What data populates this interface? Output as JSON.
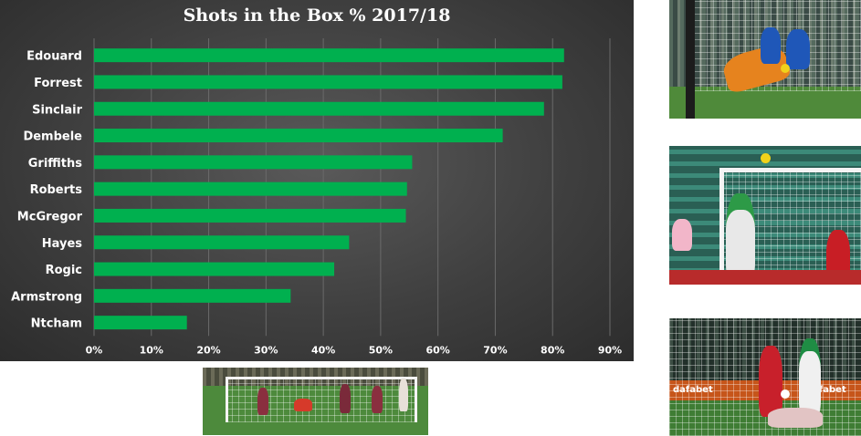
{
  "chart_data": {
    "type": "bar",
    "orientation": "horizontal",
    "title": "Shots in the Box % 2017/18",
    "categories": [
      "Edouard",
      "Forrest",
      "Sinclair",
      "Dembele",
      "Griffiths",
      "Roberts",
      "McGregor",
      "Hayes",
      "Rogic",
      "Armstrong",
      "Ntcham"
    ],
    "values": [
      82,
      81.7,
      78.5,
      71.3,
      55.5,
      54.6,
      54.4,
      44.5,
      41.9,
      34.3,
      16.2
    ],
    "xlim": [
      0,
      90
    ],
    "x_ticks": [
      "0%",
      "10%",
      "20%",
      "30%",
      "40%",
      "50%",
      "60%",
      "70%",
      "80%",
      "90%"
    ],
    "xlabel": "",
    "ylabel": "",
    "grid": "vertical",
    "bar_color": "#00b04f",
    "background_color": "#3c3c3c",
    "text_color": "#ffffff"
  },
  "photos": {
    "bottom_center": {
      "ad_text": ""
    },
    "right_bottom": {
      "ad_text_1": "dafabet",
      "ad_text_2": "dafabet"
    }
  }
}
